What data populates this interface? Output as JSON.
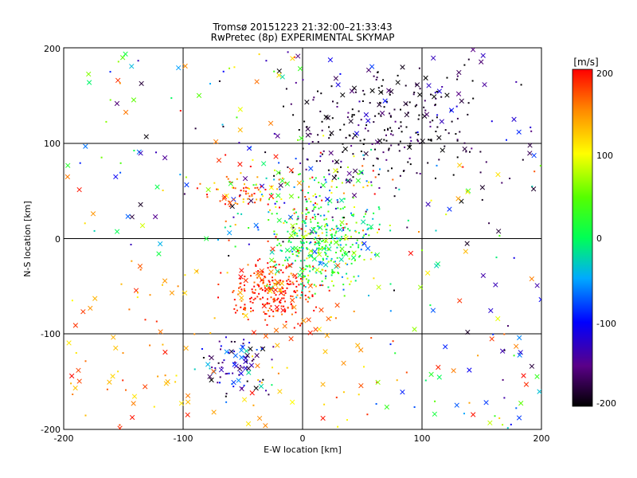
{
  "chart_data": {
    "type": "scatter",
    "title": "Tromsø 20151223 21:32:00–21:33:43",
    "subtitle": "RwPretec (8p) EXPERIMENTAL SKYMAP",
    "xlabel": "E-W location [km]",
    "ylabel": "N-S location [km]",
    "xlim": [
      -200,
      200
    ],
    "ylim": [
      -200,
      200
    ],
    "x_ticks": [
      "-200",
      "-100",
      "0",
      "100",
      "200"
    ],
    "y_ticks": [
      "-200",
      "-100",
      "0",
      "100",
      "200"
    ],
    "grid": true,
    "colorbar": {
      "label": "[m/s]",
      "range": [
        -200,
        200
      ],
      "ticks": [
        "-200",
        "-100",
        "0",
        "100",
        "200"
      ],
      "colormap": "rainbow (black-purple-blue-cyan-green-yellow-red)",
      "location": "right"
    },
    "markers": [
      "dot (small)",
      "cross (x)"
    ],
    "clusters": [
      {
        "region": "north-east cluster, mostly black",
        "center": [
          70,
          115
        ],
        "spread": [
          40,
          35
        ],
        "velocity_m_s": -190
      },
      {
        "region": "central cluster, green/cyan",
        "center": [
          15,
          -10
        ],
        "spread": [
          20,
          22
        ],
        "velocity_m_s": 20
      },
      {
        "region": "south-west cluster, red",
        "center": [
          -25,
          -55
        ],
        "spread": [
          18,
          15
        ],
        "velocity_m_s": 190
      },
      {
        "region": "south-west lower cluster, blue/purple",
        "center": [
          -55,
          -130
        ],
        "spread": [
          15,
          18
        ],
        "velocity_m_s": -130
      },
      {
        "region": "north-central, mixed green/cyan",
        "center": [
          5,
          40
        ],
        "spread": [
          30,
          25
        ],
        "velocity_m_s": 40
      },
      {
        "region": "west band, red/orange",
        "center": [
          -50,
          50
        ],
        "spread": [
          15,
          8
        ],
        "velocity_m_s": 160
      }
    ]
  }
}
